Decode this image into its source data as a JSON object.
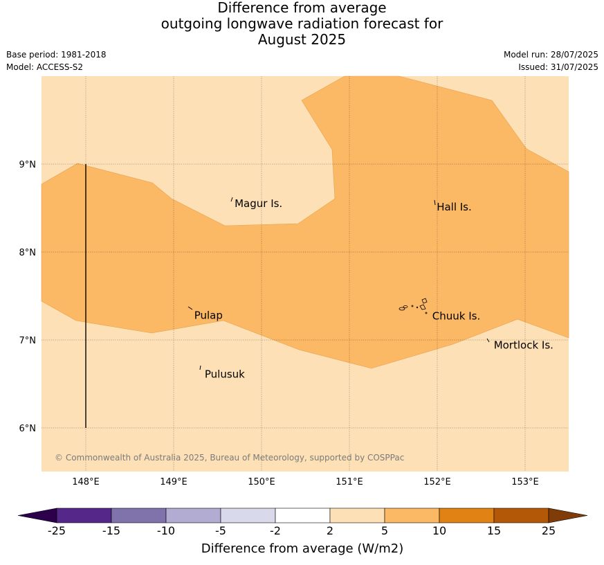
{
  "title": {
    "line1": "Difference from average",
    "line2": "outgoing longwave radiation forecast for",
    "line3": "August 2025"
  },
  "meta": {
    "base_period": "Base period: 1981-2018",
    "model": "Model: ACCESS-S2",
    "model_run": "Model run: 28/07/2025",
    "issued": "Issued: 31/07/2025"
  },
  "map": {
    "lon_range": [
      147.5,
      153.5
    ],
    "lat_range": [
      5.5,
      10.0
    ],
    "lon_ticks": [
      "148°E",
      "149°E",
      "150°E",
      "151°E",
      "152°E",
      "153°E"
    ],
    "lat_ticks": [
      "9°N",
      "8°N",
      "7°N",
      "6°N"
    ],
    "places": [
      {
        "name": "Magur Is.",
        "lon": 149.67,
        "lat": 8.55
      },
      {
        "name": "Hall Is.",
        "lon": 151.97,
        "lat": 8.51
      },
      {
        "name": "Pulap",
        "lon": 149.21,
        "lat": 7.28
      },
      {
        "name": "Chuuk Is.",
        "lon": 151.92,
        "lat": 7.27
      },
      {
        "name": "Mortlock Is.",
        "lon": 152.62,
        "lat": 6.94
      },
      {
        "name": "Pulusuk",
        "lon": 149.33,
        "lat": 6.61
      }
    ],
    "copyright": "© Commonwealth of Australia 2025, Bureau of Meteorology, supported by COSPPac",
    "colors": {
      "band_2_5": "#fde0b6",
      "band_5_10": "#fbb865",
      "coast": "#000000"
    }
  },
  "colorbar": {
    "tick_labels": [
      "-25",
      "-15",
      "-10",
      "-5",
      "-2",
      "2",
      "5",
      "10",
      "15",
      "25"
    ],
    "colors": [
      "#2d004b",
      "#542788",
      "#8073ac",
      "#b2abd2",
      "#d8daeb",
      "#ffffff",
      "#fde0b6",
      "#fbb865",
      "#e08214",
      "#b35806",
      "#7f3b08"
    ],
    "label": "Difference from average (W/m2)"
  }
}
